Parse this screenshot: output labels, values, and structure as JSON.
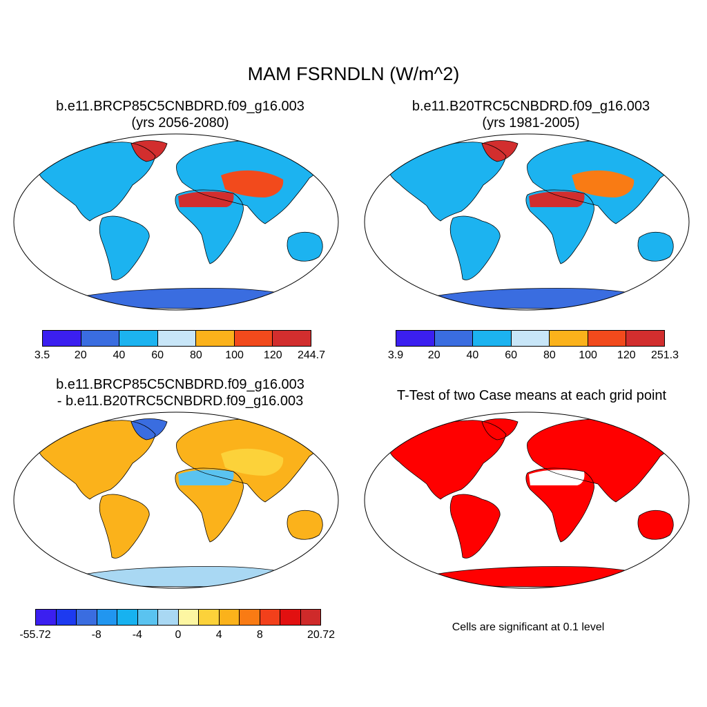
{
  "title": "MAM FSRNDLN (W/m^2)",
  "panels": {
    "p1": {
      "line1": "b.e11.BRCP85C5CNBDRD.f09_g16.003",
      "line2": "(yrs 2056-2080)",
      "colorbar": {
        "colors": [
          "#3b1ff0",
          "#3a6de0",
          "#1cb3f0",
          "#c8e6f8",
          "#fbb21b",
          "#f24a1c",
          "#d22e2e"
        ],
        "labels": [
          "3.5",
          "20",
          "40",
          "60",
          "80",
          "100",
          "120",
          "244.7"
        ]
      }
    },
    "p2": {
      "line1": "b.e11.B20TRC5CNBDRD.f09_g16.003",
      "line2": "(yrs 1981-2005)",
      "colorbar": {
        "colors": [
          "#3b1ff0",
          "#3a6de0",
          "#1cb3f0",
          "#c8e6f8",
          "#fbb21b",
          "#f24a1c",
          "#d22e2e"
        ],
        "labels": [
          "3.9",
          "20",
          "40",
          "60",
          "80",
          "100",
          "120",
          "251.3"
        ]
      }
    },
    "p3": {
      "line1": "b.e11.BRCP85C5CNBDRD.f09_g16.003",
      "line2": "- b.e11.B20TRC5CNBDRD.f09_g16.003",
      "colorbar": {
        "colors": [
          "#3b1ff0",
          "#1d3af0",
          "#3a6de0",
          "#2196f0",
          "#17b2f0",
          "#5ac3f0",
          "#a9d8f3",
          "#fdf6a2",
          "#fcd23a",
          "#fbb21b",
          "#f97b14",
          "#f2401b",
          "#e21010",
          "#cf2a2a"
        ],
        "labels": [
          "-55.72",
          "-8",
          "-4",
          "0",
          "4",
          "8",
          "20.72"
        ]
      }
    },
    "p4": {
      "line1": "T-Test of two Case means at each grid point",
      "note": "Cells are significant at 0.1 level"
    }
  }
}
